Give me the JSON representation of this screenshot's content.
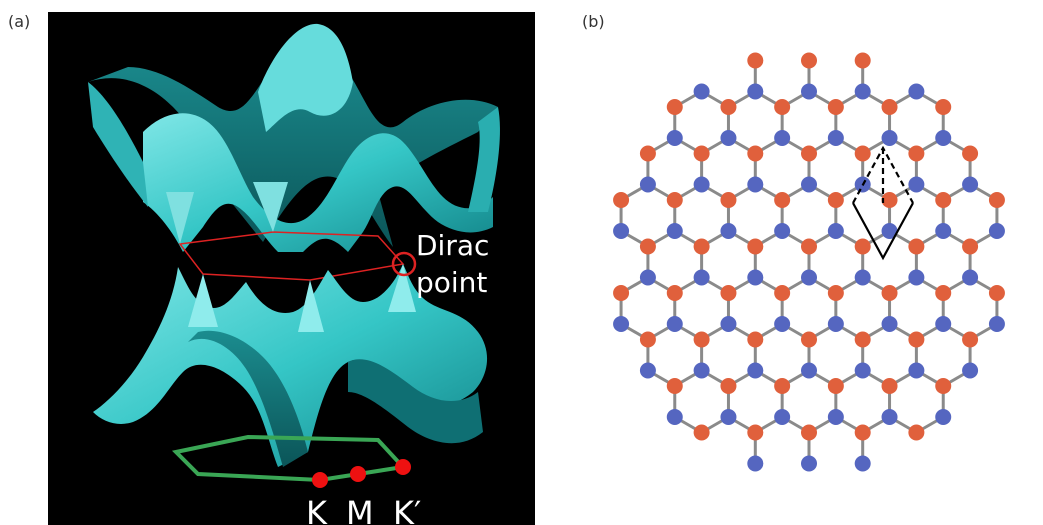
{
  "figure": {
    "panel_a": {
      "label": "(a)",
      "annotation_line1": "Dirac",
      "annotation_line2": "point",
      "k_points": [
        "K",
        "M",
        "K′"
      ],
      "colors": {
        "background": "#000000",
        "surface": "#35c6c6",
        "surface_shadow": "#0f6f73",
        "dirac_ring": "#dd2222",
        "brillouin_zone": "#3aa655",
        "k_point": "#ee1111"
      }
    },
    "panel_b": {
      "label": "(b)",
      "colors": {
        "sublattice_a": "#e0603c",
        "sublattice_b": "#5566c0",
        "bond": "#8a8a8a",
        "unit_cell": "#000000"
      }
    }
  }
}
